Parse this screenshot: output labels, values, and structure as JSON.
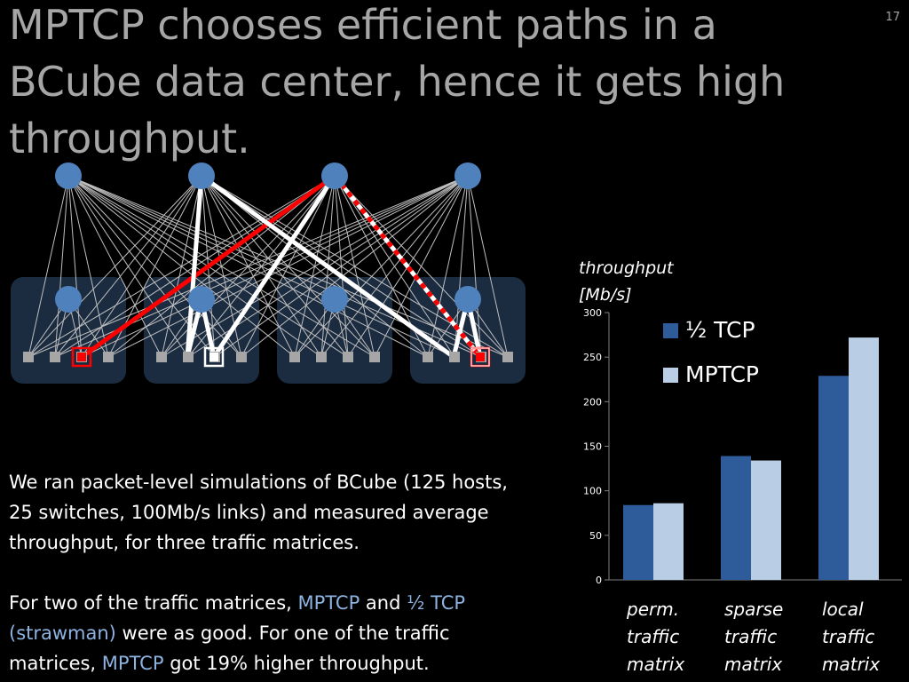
{
  "slide": {
    "title": "MPTCP chooses efficient paths in a BCube data center, hence it gets high throughput.",
    "number": "17"
  },
  "body": {
    "para1": "We ran packet-level simulations of BCube (125 hosts, 25 switches, 100Mb/s links) and measured average throughput, for three traffic matrices.",
    "para2": {
      "t1": "For two of the traffic matrices, ",
      "h1": "MPTCP",
      "t2": " and ",
      "h2": "½ TCP (strawman)",
      "t3": " were as good. For one of the traffic matrices, ",
      "h3": "MPTCP",
      "t4": " got 19% higher throughput."
    }
  },
  "colors": {
    "background": "#000000",
    "title": "#a6a6a6",
    "highlight": "#8db3e2",
    "tcp_bar": "#2e5b9a",
    "mptcp_bar": "#b9cde5",
    "switch_node": "#4f81bd",
    "group_box": "#1b2b40",
    "path_red": "#ff0000",
    "path_white": "#ffffff"
  },
  "chart_data": {
    "type": "bar",
    "ylabel": "throughput [Mb/s]",
    "ylim": [
      0,
      300
    ],
    "yticks": [
      "0",
      "50",
      "100",
      "150",
      "200",
      "250",
      "300"
    ],
    "categories": [
      "perm. traffic matrix",
      "sparse traffic matrix",
      "local traffic matrix"
    ],
    "series": [
      {
        "name": "½ TCP",
        "values": [
          84,
          139,
          229
        ]
      },
      {
        "name": "MPTCP",
        "values": [
          86,
          134,
          272
        ]
      }
    ],
    "legend": "top-left"
  }
}
